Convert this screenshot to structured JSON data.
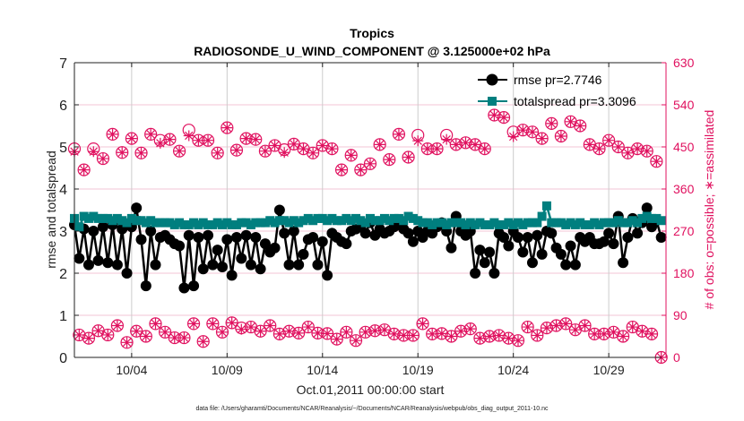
{
  "chart_data": {
    "type": "line",
    "title": "Tropics",
    "subtitle": "RADIOSONDE_U_WIND_COMPONENT @ 3.125000e+02 hPa",
    "xlabel": "Oct.01,2011 00:00:00 start",
    "ylabel": "rmse and totalspread",
    "ylabel_right": "# of obs: o=possible; ∗=assimilated",
    "footnote": "data file: /Users/gharamti/Documents/NCAR/Reanalysis/~/Documents/NCAR/Reanalysis/webpub/obs_diag_output_2011-10.nc",
    "xlim": [
      "2011-10-01T00",
      "2011-11-01T00"
    ],
    "ylim": [
      0,
      7
    ],
    "ylim_right": [
      0,
      630
    ],
    "x_ticks": [
      {
        "date": "2011-10-04T00",
        "label": "10/04"
      },
      {
        "date": "2011-10-09T00",
        "label": "10/09"
      },
      {
        "date": "2011-10-14T00",
        "label": "10/14"
      },
      {
        "date": "2011-10-19T00",
        "label": "10/19"
      },
      {
        "date": "2011-10-24T00",
        "label": "10/24"
      },
      {
        "date": "2011-10-29T00",
        "label": "10/29"
      }
    ],
    "y_ticks": [
      "0",
      "1",
      "2",
      "3",
      "4",
      "5",
      "6",
      "7"
    ],
    "y_ticks_right": [
      "0",
      "90",
      "180",
      "270",
      "360",
      "450",
      "540",
      "630"
    ],
    "grid": true,
    "legend": {
      "placement": "top-right",
      "entries": [
        "rmse pr=2.7746",
        "totalspread pr=3.3096"
      ]
    },
    "colors": {
      "rmse": "#000000",
      "totalspread": "#007f7f",
      "obs": "#e0115f",
      "grid_v": "#cccccc",
      "grid_h": "#f3c6d6"
    },
    "x": [
      "2011-10-01T00",
      "2011-10-01T06",
      "2011-10-01T12",
      "2011-10-01T18",
      "2011-10-02T00",
      "2011-10-02T06",
      "2011-10-02T12",
      "2011-10-02T18",
      "2011-10-03T00",
      "2011-10-03T06",
      "2011-10-03T12",
      "2011-10-03T18",
      "2011-10-04T00",
      "2011-10-04T06",
      "2011-10-04T12",
      "2011-10-04T18",
      "2011-10-05T00",
      "2011-10-05T06",
      "2011-10-05T12",
      "2011-10-05T18",
      "2011-10-06T00",
      "2011-10-06T06",
      "2011-10-06T12",
      "2011-10-06T18",
      "2011-10-07T00",
      "2011-10-07T06",
      "2011-10-07T12",
      "2011-10-07T18",
      "2011-10-08T00",
      "2011-10-08T06",
      "2011-10-08T12",
      "2011-10-08T18",
      "2011-10-09T00",
      "2011-10-09T06",
      "2011-10-09T12",
      "2011-10-09T18",
      "2011-10-10T00",
      "2011-10-10T06",
      "2011-10-10T12",
      "2011-10-10T18",
      "2011-10-11T00",
      "2011-10-11T06",
      "2011-10-11T12",
      "2011-10-11T18",
      "2011-10-12T00",
      "2011-10-12T06",
      "2011-10-12T12",
      "2011-10-12T18",
      "2011-10-13T00",
      "2011-10-13T06",
      "2011-10-13T12",
      "2011-10-13T18",
      "2011-10-14T00",
      "2011-10-14T06",
      "2011-10-14T12",
      "2011-10-14T18",
      "2011-10-15T00",
      "2011-10-15T06",
      "2011-10-15T12",
      "2011-10-15T18",
      "2011-10-16T00",
      "2011-10-16T06",
      "2011-10-16T12",
      "2011-10-16T18",
      "2011-10-17T00",
      "2011-10-17T06",
      "2011-10-17T12",
      "2011-10-17T18",
      "2011-10-18T00",
      "2011-10-18T06",
      "2011-10-18T12",
      "2011-10-18T18",
      "2011-10-19T00",
      "2011-10-19T06",
      "2011-10-19T12",
      "2011-10-19T18",
      "2011-10-20T00",
      "2011-10-20T06",
      "2011-10-20T12",
      "2011-10-20T18",
      "2011-10-21T00",
      "2011-10-21T06",
      "2011-10-21T12",
      "2011-10-21T18",
      "2011-10-22T00",
      "2011-10-22T06",
      "2011-10-22T12",
      "2011-10-22T18",
      "2011-10-23T00",
      "2011-10-23T06",
      "2011-10-23T12",
      "2011-10-23T18",
      "2011-10-24T00",
      "2011-10-24T06",
      "2011-10-24T12",
      "2011-10-24T18",
      "2011-10-25T00",
      "2011-10-25T06",
      "2011-10-25T12",
      "2011-10-25T18",
      "2011-10-26T00",
      "2011-10-26T06",
      "2011-10-26T12",
      "2011-10-26T18",
      "2011-10-27T00",
      "2011-10-27T06",
      "2011-10-27T12",
      "2011-10-27T18",
      "2011-10-28T00",
      "2011-10-28T06",
      "2011-10-28T12",
      "2011-10-28T18",
      "2011-10-29T00",
      "2011-10-29T06",
      "2011-10-29T12",
      "2011-10-29T18",
      "2011-10-30T00",
      "2011-10-30T06",
      "2011-10-30T12",
      "2011-10-30T18",
      "2011-10-31T00",
      "2011-10-31T06",
      "2011-10-31T12",
      "2011-10-31T18"
    ],
    "series": [
      {
        "name": "rmse pr=2.7746",
        "axis": "left",
        "values": [
          3.15,
          2.35,
          3.05,
          2.2,
          3.0,
          2.3,
          3.1,
          2.25,
          3.15,
          2.2,
          3.05,
          2.0,
          3.1,
          3.55,
          2.8,
          1.7,
          3.0,
          2.2,
          2.85,
          2.9,
          2.8,
          2.7,
          2.65,
          1.65,
          2.9,
          1.7,
          2.85,
          2.1,
          2.9,
          2.2,
          2.55,
          2.15,
          2.8,
          1.95,
          2.85,
          2.35,
          2.9,
          2.2,
          2.85,
          2.1,
          2.7,
          2.5,
          2.6,
          3.5,
          2.95,
          2.2,
          3.0,
          2.2,
          2.45,
          2.8,
          2.85,
          2.2,
          2.75,
          1.95,
          2.95,
          2.85,
          2.75,
          2.7,
          3.0,
          3.05,
          3.1,
          2.95,
          3.2,
          2.9,
          3.05,
          2.95,
          3.0,
          3.1,
          3.15,
          3.05,
          2.95,
          2.75,
          3.0,
          2.85,
          3.0,
          2.95,
          3.1,
          3.2,
          3.0,
          2.6,
          3.35,
          3.0,
          2.9,
          3.0,
          2.0,
          2.55,
          2.25,
          2.5,
          2.0,
          2.95,
          2.85,
          2.65,
          3.0,
          2.85,
          2.5,
          2.85,
          2.25,
          2.9,
          2.45,
          3.0,
          2.95,
          2.6,
          2.45,
          2.2,
          2.65,
          2.2,
          2.85,
          2.75,
          2.85,
          2.7,
          2.7,
          2.75,
          2.95,
          2.7,
          3.35,
          2.25,
          2.85,
          3.3,
          2.95,
          3.2,
          3.55,
          3.1,
          3.25,
          2.85
        ]
      },
      {
        "name": "totalspread pr=3.3096",
        "axis": "left",
        "values": [
          3.3,
          3.1,
          3.35,
          3.3,
          3.35,
          3.3,
          3.3,
          3.3,
          3.25,
          3.3,
          3.25,
          3.2,
          3.3,
          3.25,
          3.25,
          3.2,
          3.25,
          3.2,
          3.2,
          3.2,
          3.2,
          3.15,
          3.2,
          3.15,
          3.15,
          3.2,
          3.15,
          3.2,
          3.15,
          3.15,
          3.2,
          3.15,
          3.2,
          3.15,
          3.15,
          3.2,
          3.2,
          3.15,
          3.2,
          3.2,
          3.2,
          3.25,
          3.2,
          3.25,
          3.25,
          3.2,
          3.25,
          3.2,
          3.25,
          3.3,
          3.25,
          3.3,
          3.3,
          3.25,
          3.3,
          3.25,
          3.25,
          3.3,
          3.25,
          3.3,
          3.25,
          3.2,
          3.3,
          3.25,
          3.25,
          3.3,
          3.25,
          3.3,
          3.3,
          3.25,
          3.35,
          3.3,
          3.25,
          3.2,
          3.2,
          3.15,
          3.2,
          3.2,
          3.15,
          3.2,
          3.2,
          3.2,
          3.15,
          3.2,
          3.15,
          3.2,
          3.15,
          3.15,
          3.2,
          3.15,
          3.15,
          3.2,
          3.15,
          3.2,
          3.15,
          3.2,
          3.2,
          3.2,
          3.35,
          3.6,
          3.2,
          3.2,
          3.2,
          3.15,
          3.2,
          3.15,
          3.2,
          3.15,
          3.15,
          3.2,
          3.15,
          3.2,
          3.2,
          3.2,
          3.25,
          3.2,
          3.2,
          3.25,
          3.2,
          3.3,
          3.35,
          3.3,
          3.3,
          3.25
        ]
      },
      {
        "name": "possible",
        "axis": "right",
        "values": [
          446,
          48,
          401,
          41,
          446,
          57,
          425,
          48,
          477,
          68,
          438,
          32,
          468,
          56,
          437,
          45,
          477,
          72,
          464,
          54,
          466,
          42,
          441,
          42,
          486,
          72,
          464,
          34,
          464,
          72,
          437,
          54,
          491,
          74,
          443,
          63,
          468,
          65,
          466,
          56,
          441,
          68,
          453,
          50,
          444,
          56,
          456,
          52,
          446,
          65,
          437,
          52,
          453,
          51,
          446,
          39,
          401,
          54,
          432,
          36,
          401,
          54,
          414,
          57,
          455,
          59,
          423,
          50,
          477,
          47,
          428,
          47,
          475,
          72,
          446,
          50,
          446,
          51,
          475,
          45,
          455,
          56,
          459,
          61,
          455,
          41,
          446,
          45,
          518,
          47,
          513,
          41,
          482,
          36,
          486,
          65,
          482,
          47,
          468,
          63,
          500,
          68,
          473,
          72,
          504,
          59,
          495,
          68,
          455,
          50,
          446,
          50,
          464,
          54,
          450,
          45,
          437,
          65,
          446,
          56,
          441,
          50,
          419,
          0
        ]
      },
      {
        "name": "assimilated",
        "axis": "right",
        "values": [
          440,
          48,
          401,
          41,
          440,
          57,
          425,
          48,
          477,
          68,
          438,
          32,
          468,
          56,
          437,
          45,
          477,
          72,
          458,
          54,
          466,
          42,
          441,
          42,
          474,
          72,
          464,
          34,
          464,
          72,
          437,
          54,
          491,
          74,
          443,
          60,
          468,
          65,
          466,
          56,
          441,
          68,
          453,
          50,
          438,
          56,
          456,
          52,
          446,
          65,
          437,
          52,
          453,
          51,
          446,
          39,
          401,
          54,
          432,
          36,
          401,
          54,
          414,
          57,
          455,
          59,
          423,
          50,
          477,
          47,
          428,
          47,
          463,
          72,
          446,
          50,
          446,
          51,
          466,
          45,
          455,
          56,
          459,
          61,
          455,
          41,
          446,
          45,
          518,
          47,
          513,
          41,
          472,
          36,
          486,
          65,
          482,
          47,
          468,
          63,
          500,
          68,
          473,
          72,
          504,
          59,
          495,
          68,
          455,
          50,
          446,
          50,
          464,
          54,
          450,
          45,
          437,
          65,
          446,
          56,
          441,
          50,
          419,
          0
        ]
      }
    ]
  }
}
